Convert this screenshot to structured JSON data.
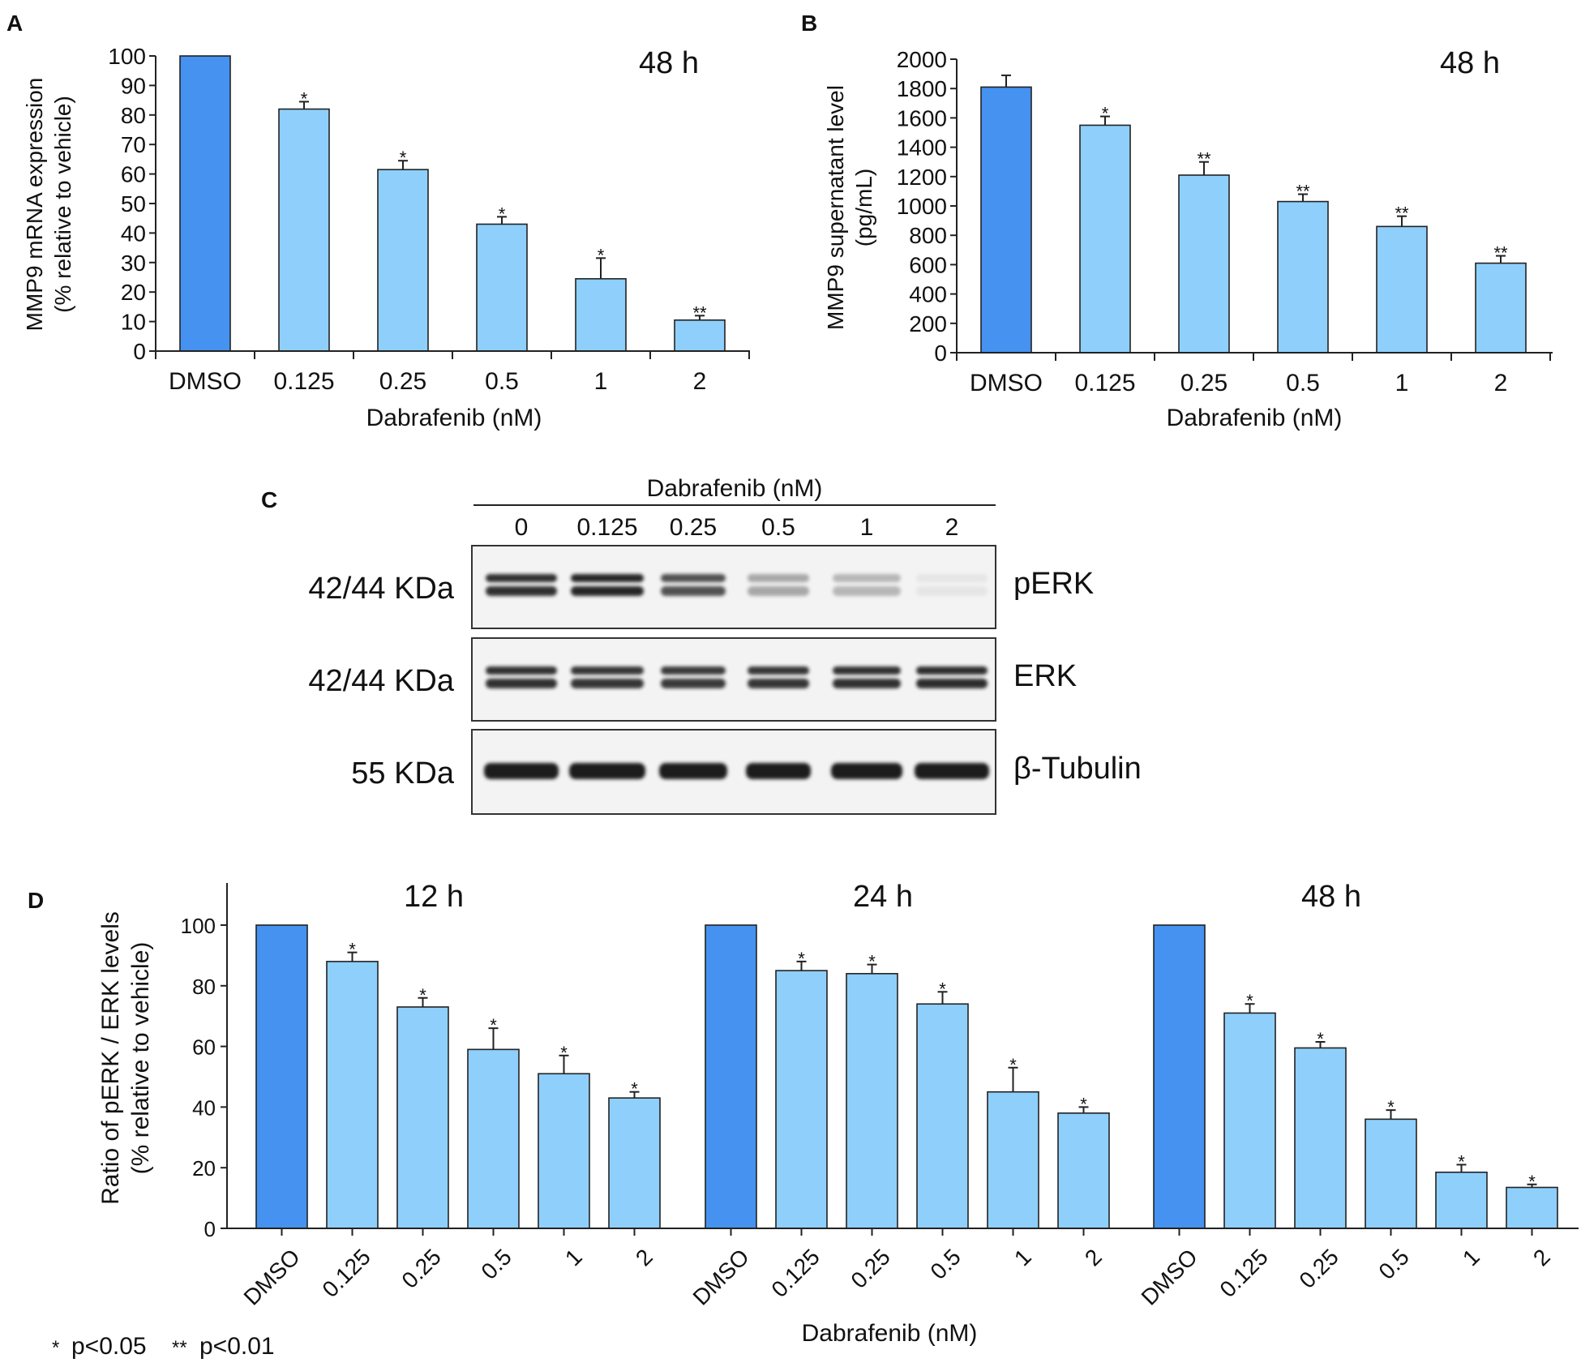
{
  "colors": {
    "dmso": "#4592f0",
    "treated": "#8fcffb",
    "axis": "#222222",
    "band": "#1b1b1b"
  },
  "legend": {
    "star1": "*",
    "p1": "p<0.05",
    "star2": "**",
    "p2": "p<0.01"
  },
  "chart_data": [
    {
      "panel": "A",
      "type": "bar",
      "annotation": "48 h",
      "categories": [
        "DMSO",
        "0.125",
        "0.25",
        "0.5",
        "1",
        "2"
      ],
      "values": [
        100,
        82,
        61.5,
        43,
        24.5,
        10.5
      ],
      "errors": [
        0,
        2.5,
        3,
        2.5,
        7,
        1.5
      ],
      "significance": [
        "",
        "*",
        "*",
        "*",
        "*",
        "**"
      ],
      "yticks": [
        "0",
        "10",
        "20",
        "30",
        "40",
        "50",
        "60",
        "70",
        "80",
        "90",
        "100"
      ],
      "ylim": [
        0,
        100
      ],
      "xlabel": "Dabrafenib (nM)",
      "ylabel": [
        "MMP9 mRNA expression",
        "(% relative to vehicle)"
      ]
    },
    {
      "panel": "B",
      "type": "bar",
      "annotation": "48 h",
      "categories": [
        "DMSO",
        "0.125",
        "0.25",
        "0.5",
        "1",
        "2"
      ],
      "values": [
        1810,
        1550,
        1210,
        1030,
        860,
        610
      ],
      "errors": [
        80,
        60,
        90,
        50,
        70,
        50
      ],
      "significance": [
        "",
        "*",
        "**",
        "**",
        "**",
        "**"
      ],
      "yticks": [
        "0",
        "200",
        "400",
        "600",
        "800",
        "1000",
        "1200",
        "1400",
        "1600",
        "1800",
        "2000"
      ],
      "ylim": [
        0,
        2000
      ],
      "xlabel": "Dabrafenib (nM)",
      "ylabel": [
        "MMP9 supernatant level",
        "(pg/mL)"
      ]
    },
    {
      "panel": "D",
      "type": "bar",
      "groups": [
        "12 h",
        "24 h",
        "48 h"
      ],
      "categories": [
        "DMSO",
        "0.125",
        "0.25",
        "0.5",
        "1",
        "2"
      ],
      "series": [
        {
          "name": "12 h",
          "values": [
            100,
            88,
            73,
            59,
            51,
            43
          ],
          "errors": [
            0,
            3,
            3,
            7,
            6,
            2
          ],
          "significance": [
            "",
            "*",
            "*",
            "*",
            "*",
            "*"
          ]
        },
        {
          "name": "24 h",
          "values": [
            100,
            85,
            84,
            74,
            45,
            38
          ],
          "errors": [
            0,
            3,
            3,
            4,
            8,
            2
          ],
          "significance": [
            "",
            "*",
            "*",
            "*",
            "*",
            "*"
          ]
        },
        {
          "name": "48 h",
          "values": [
            100,
            71,
            59.5,
            36,
            18.5,
            13.5
          ],
          "errors": [
            0,
            3,
            2,
            3,
            2.5,
            1
          ],
          "significance": [
            "",
            "*",
            "*",
            "*",
            "*",
            "*"
          ]
        }
      ],
      "yticks": [
        "0",
        "20",
        "40",
        "60",
        "80",
        "100"
      ],
      "ylim": [
        0,
        115
      ],
      "xlabel": "Dabrafenib (nM)",
      "ylabel": [
        "Ratio of pERK / ERK levels",
        "(% relative to vehicle)"
      ]
    }
  ],
  "western_blot": {
    "panel": "C",
    "header": "Dabrafenib (nM)",
    "lanes": [
      "0",
      "0.125",
      "0.25",
      "0.5",
      "1",
      "2"
    ],
    "rows": [
      {
        "size": "42/44 KDa",
        "name": "pERK",
        "intensity": [
          0.9,
          0.95,
          0.75,
          0.35,
          0.28,
          0.06
        ],
        "doublet": true
      },
      {
        "size": "42/44 KDa",
        "name": "ERK",
        "intensity": [
          0.9,
          0.88,
          0.86,
          0.88,
          0.9,
          0.92
        ],
        "doublet": true
      },
      {
        "size": "55 KDa",
        "name": "β-Tubulin",
        "intensity": [
          1,
          1,
          1,
          1,
          1,
          1
        ],
        "doublet": false
      }
    ]
  }
}
